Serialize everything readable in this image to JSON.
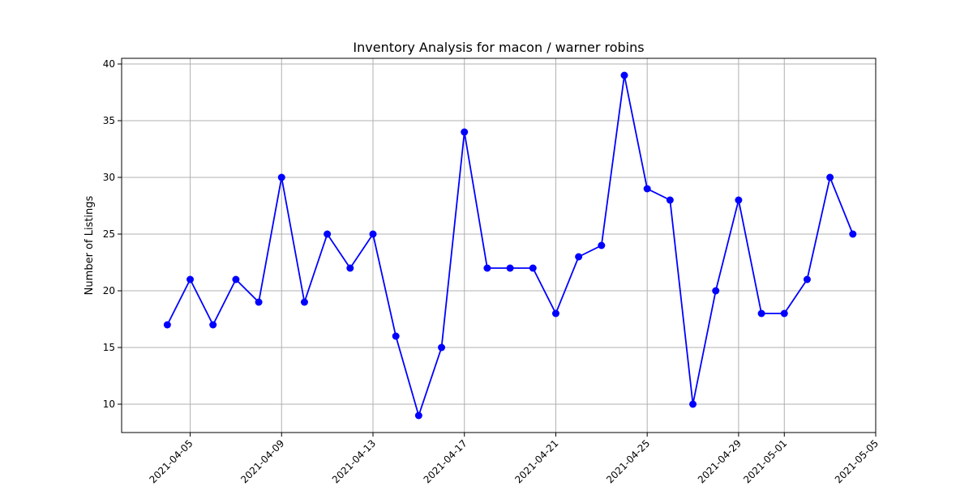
{
  "chart_data": {
    "type": "line",
    "title": "Inventory Analysis for macon / warner robins",
    "xlabel": "",
    "ylabel": "Number of Listings",
    "x": [
      "2021-04-04",
      "2021-04-05",
      "2021-04-06",
      "2021-04-07",
      "2021-04-08",
      "2021-04-09",
      "2021-04-10",
      "2021-04-11",
      "2021-04-12",
      "2021-04-13",
      "2021-04-14",
      "2021-04-15",
      "2021-04-16",
      "2021-04-17",
      "2021-04-18",
      "2021-04-19",
      "2021-04-20",
      "2021-04-21",
      "2021-04-22",
      "2021-04-23",
      "2021-04-24",
      "2021-04-25",
      "2021-04-26",
      "2021-04-27",
      "2021-04-28",
      "2021-04-29",
      "2021-04-30",
      "2021-05-01",
      "2021-05-02",
      "2021-05-03",
      "2021-05-04"
    ],
    "series": [
      {
        "values": [
          17,
          21,
          17,
          21,
          19,
          30,
          19,
          25,
          22,
          25,
          16,
          9,
          15,
          34,
          22,
          22,
          22,
          18,
          23,
          24,
          39,
          29,
          28,
          10,
          20,
          28,
          18,
          18,
          21,
          30,
          25
        ],
        "color": "#0000ff",
        "marker": "circle"
      }
    ],
    "xlim": [
      "2021-04-02",
      "2021-05-05"
    ],
    "ylim": [
      7.5,
      40.5
    ],
    "xticks": [
      "2021-04-05",
      "2021-04-09",
      "2021-04-13",
      "2021-04-17",
      "2021-04-21",
      "2021-04-25",
      "2021-04-29",
      "2021-05-01",
      "2021-05-05"
    ],
    "yticks": [
      10,
      15,
      20,
      25,
      30,
      35,
      40
    ],
    "grid": true
  }
}
